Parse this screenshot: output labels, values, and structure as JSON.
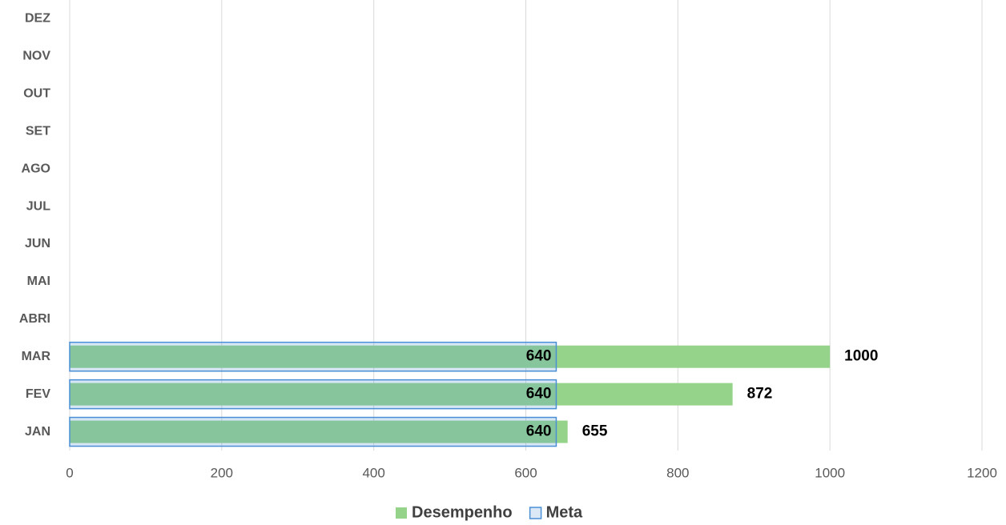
{
  "chart_data": {
    "type": "bar",
    "orientation": "horizontal",
    "categories": [
      "JAN",
      "FEV",
      "MAR",
      "ABRI",
      "MAI",
      "JUN",
      "JUL",
      "AGO",
      "SET",
      "OUT",
      "NOV",
      "DEZ"
    ],
    "series": [
      {
        "name": "Desempenho",
        "color": "#96d38a",
        "values": [
          655,
          872,
          1000,
          null,
          null,
          null,
          null,
          null,
          null,
          null,
          null,
          null
        ]
      },
      {
        "name": "Meta",
        "color": "#4a8fd6",
        "values": [
          640,
          640,
          640,
          null,
          null,
          null,
          null,
          null,
          null,
          null,
          null,
          null
        ]
      }
    ],
    "xlim": [
      0,
      1200
    ],
    "xticks": [
      0,
      200,
      400,
      600,
      800,
      1000,
      1200
    ],
    "grid": true,
    "legend": "bottom"
  }
}
